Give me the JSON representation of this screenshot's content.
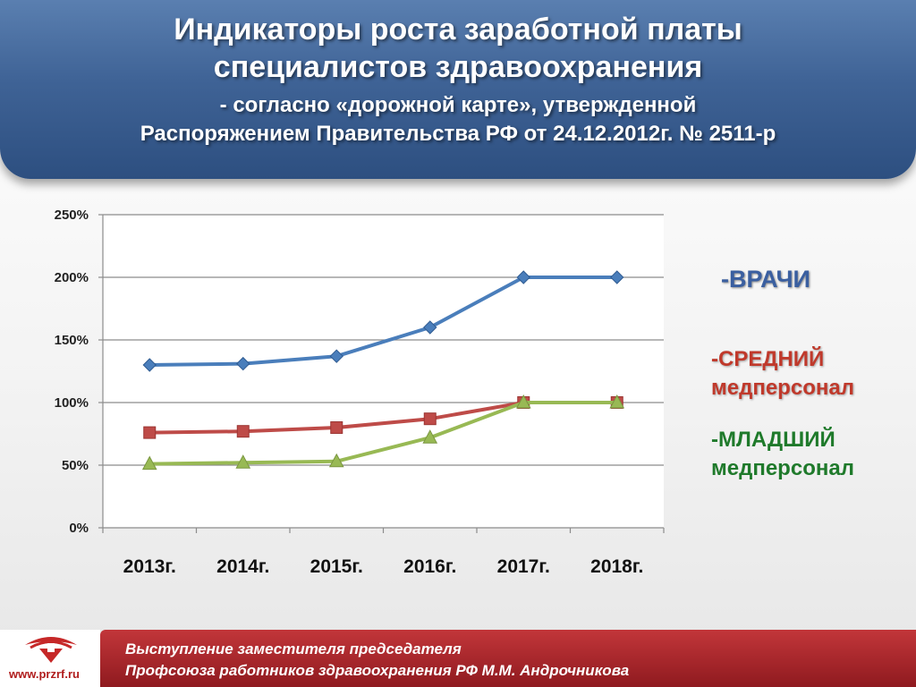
{
  "header": {
    "title_line1": "Индикаторы роста заработной платы",
    "title_line2": "специалистов здравоохранения",
    "subtitle_line1": "- согласно «дорожной карте», утвержденной",
    "subtitle_line2": "Распоряжением Правительства РФ от 24.12.2012г. № 2511-р"
  },
  "legend": {
    "doctors": "-ВРАЧИ",
    "middle_line1": "-СРЕДНИЙ",
    "middle_line2": "медперсонал",
    "junior_line1": "-МЛАДШИЙ",
    "junior_line2": "медперсонал"
  },
  "chart_data": {
    "type": "line",
    "categories": [
      "2013г.",
      "2014г.",
      "2015г.",
      "2016г.",
      "2017г.",
      "2018г."
    ],
    "y_ticks": [
      "0%",
      "50%",
      "100%",
      "150%",
      "200%",
      "250%"
    ],
    "ylim": [
      0,
      250
    ],
    "grid": true,
    "legend_position": "right",
    "series": [
      {
        "name": "-ВРАЧИ",
        "color": "#4a7ebb",
        "marker": "diamond",
        "values": [
          130,
          131,
          137,
          160,
          200,
          200
        ]
      },
      {
        "name": "-СРЕДНИЙ медперсонал",
        "color": "#be4b48",
        "marker": "square",
        "values": [
          76,
          77,
          80,
          87,
          100,
          100
        ]
      },
      {
        "name": "-МЛАДШИЙ медперсонал",
        "color": "#98b954",
        "marker": "triangle",
        "values": [
          51,
          52,
          53,
          72,
          100,
          100
        ]
      }
    ]
  },
  "footer": {
    "url": "www.przrf.ru",
    "line1": "Выступление заместителя председателя",
    "line2": "Профсоюза работников здравоохранения РФ  М.М. Андрочникова"
  }
}
